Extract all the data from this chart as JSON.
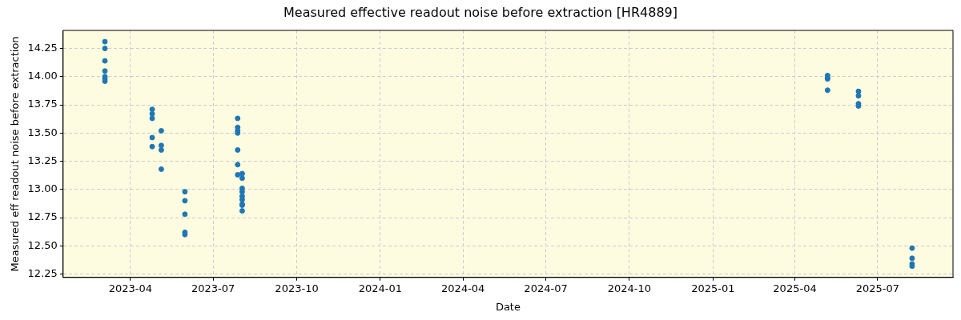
{
  "chart_data": {
    "type": "scatter",
    "title": "Measured effective readout noise before extraction [HR4889]",
    "xlabel": "Date",
    "ylabel": "Measured eff readout noise before extraction",
    "x": [
      "2023-03-04",
      "2023-03-04",
      "2023-03-04",
      "2023-03-04",
      "2023-03-04",
      "2023-03-04",
      "2023-03-04",
      "2023-04-25",
      "2023-04-25",
      "2023-04-25",
      "2023-04-25",
      "2023-04-25",
      "2023-05-05",
      "2023-05-05",
      "2023-05-05",
      "2023-05-05",
      "2023-05-31",
      "2023-05-31",
      "2023-05-31",
      "2023-05-31",
      "2023-05-31",
      "2023-07-28",
      "2023-07-28",
      "2023-07-28",
      "2023-07-28",
      "2023-07-28",
      "2023-07-28",
      "2023-07-28",
      "2023-08-02",
      "2023-08-02",
      "2023-08-02",
      "2023-08-02",
      "2023-08-02",
      "2023-08-02",
      "2023-08-02",
      "2023-08-02",
      "2023-08-02",
      "2025-05-07",
      "2025-05-07",
      "2025-05-07",
      "2025-05-07",
      "2025-06-10",
      "2025-06-10",
      "2025-06-10",
      "2025-06-10",
      "2025-08-08",
      "2025-08-08",
      "2025-08-08",
      "2025-08-08"
    ],
    "series": [
      {
        "color": "#1f77b4",
        "values": [
          14.31,
          14.25,
          14.14,
          14.05,
          14.0,
          13.98,
          13.96,
          13.71,
          13.67,
          13.63,
          13.46,
          13.38,
          13.52,
          13.39,
          13.35,
          13.18,
          12.98,
          12.9,
          12.78,
          12.62,
          12.6,
          13.63,
          13.55,
          13.52,
          13.5,
          13.35,
          13.22,
          13.13,
          13.14,
          13.1,
          13.01,
          12.98,
          12.94,
          12.91,
          12.87,
          12.86,
          12.81,
          14.01,
          13.99,
          13.98,
          13.88,
          13.87,
          13.83,
          13.76,
          13.74,
          12.48,
          12.39,
          12.34,
          12.32
        ]
      }
    ],
    "xlim": [
      "2023-01-17",
      "2025-09-22"
    ],
    "xticks": [
      {
        "value": "2023-04-01",
        "label": "2023-04"
      },
      {
        "value": "2023-07-01",
        "label": "2023-07"
      },
      {
        "value": "2023-10-01",
        "label": "2023-10"
      },
      {
        "value": "2024-01-01",
        "label": "2024-01"
      },
      {
        "value": "2024-04-01",
        "label": "2024-04"
      },
      {
        "value": "2024-07-01",
        "label": "2024-07"
      },
      {
        "value": "2024-10-01",
        "label": "2024-10"
      },
      {
        "value": "2025-01-01",
        "label": "2025-01"
      },
      {
        "value": "2025-04-01",
        "label": "2025-04"
      },
      {
        "value": "2025-07-01",
        "label": "2025-07"
      }
    ],
    "ylim": [
      12.22,
      14.41
    ],
    "yticks": [
      {
        "value": 12.25,
        "label": "12.25"
      },
      {
        "value": 12.5,
        "label": "12.50"
      },
      {
        "value": 12.75,
        "label": "12.75"
      },
      {
        "value": 13,
        "label": "13.00"
      },
      {
        "value": 13.25,
        "label": "13.25"
      },
      {
        "value": 13.5,
        "label": "13.50"
      },
      {
        "value": 13.75,
        "label": "13.75"
      },
      {
        "value": 14,
        "label": "14.00"
      },
      {
        "value": 14.25,
        "label": "14.25"
      }
    ],
    "grid": true,
    "marker": "circle",
    "legend": false
  }
}
